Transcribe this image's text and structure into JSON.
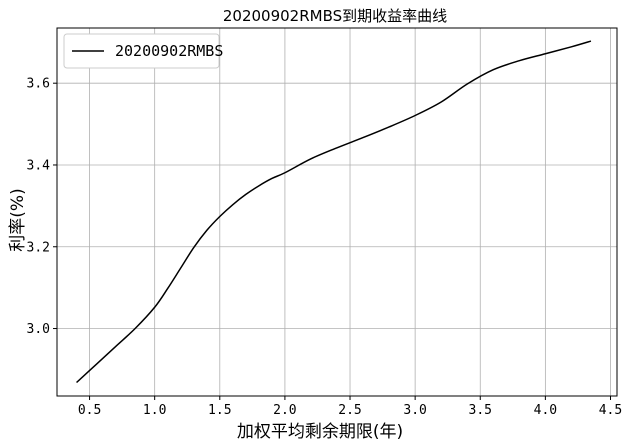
{
  "chart_data": {
    "type": "line",
    "title": "20200902RMBS到期收益率曲线",
    "xlabel": "加权平均剩余期限(年)",
    "ylabel": "利率(%)",
    "xlim": [
      0.25,
      4.55
    ],
    "ylim": [
      2.835,
      3.735
    ],
    "xticks": [
      0.5,
      1.0,
      1.5,
      2.0,
      2.5,
      3.0,
      3.5,
      4.0,
      4.5
    ],
    "xtick_labels": [
      "0.5",
      "1.0",
      "1.5",
      "2.0",
      "2.5",
      "3.0",
      "3.5",
      "4.0",
      "4.5"
    ],
    "yticks": [
      3.0,
      3.2,
      3.4,
      3.6
    ],
    "ytick_labels": [
      "3.0",
      "3.2",
      "3.4",
      "3.6"
    ],
    "grid": true,
    "legend": "top-left",
    "series": [
      {
        "name": "20200902RMBS",
        "color": "#000000",
        "x": [
          0.4,
          0.55,
          0.7,
          0.85,
          1.0,
          1.1,
          1.2,
          1.3,
          1.4,
          1.5,
          1.6,
          1.7,
          1.8,
          1.9,
          2.0,
          2.2,
          2.4,
          2.6,
          2.8,
          3.0,
          3.2,
          3.4,
          3.6,
          3.8,
          4.0,
          4.2,
          4.35
        ],
        "y": [
          2.868,
          2.912,
          2.956,
          3.0,
          3.052,
          3.098,
          3.148,
          3.198,
          3.24,
          3.274,
          3.303,
          3.328,
          3.349,
          3.367,
          3.381,
          3.415,
          3.442,
          3.467,
          3.493,
          3.521,
          3.554,
          3.598,
          3.633,
          3.655,
          3.672,
          3.689,
          3.703
        ]
      }
    ]
  }
}
